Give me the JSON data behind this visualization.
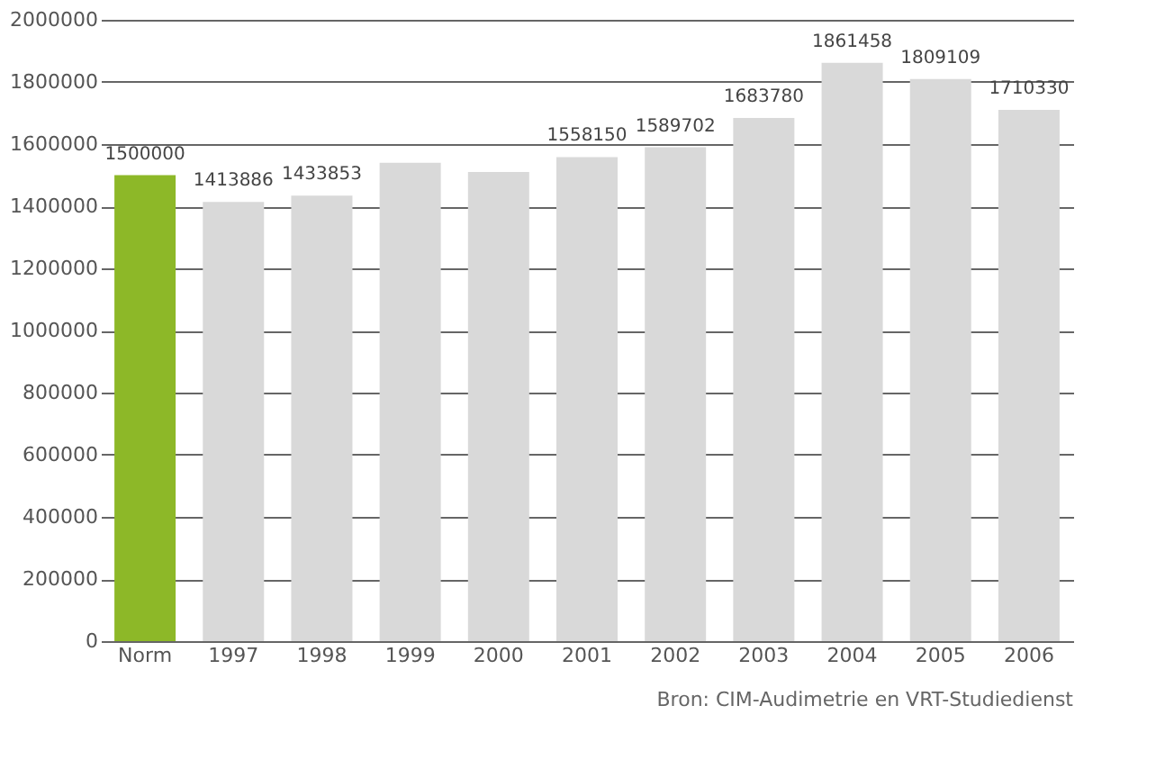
{
  "chart_data": {
    "type": "bar",
    "categories": [
      "Norm",
      "1997",
      "1998",
      "1999",
      "2000",
      "2001",
      "2002",
      "2003",
      "2004",
      "2005",
      "2006"
    ],
    "values": [
      1500000,
      1413886,
      1433853,
      1540000,
      1510000,
      1558150,
      1589702,
      1683780,
      1861458,
      1809109,
      1710330
    ],
    "colors": [
      "#8db828",
      "#d9d9d9",
      "#d9d9d9",
      "#d9d9d9",
      "#d9d9d9",
      "#d9d9d9",
      "#d9d9d9",
      "#d9d9d9",
      "#d9d9d9",
      "#d9d9d9",
      "#d9d9d9"
    ],
    "value_labels": [
      "1500000",
      "1413886",
      "1433853",
      null,
      null,
      "1558150",
      "1589702",
      "1683780",
      "1861458",
      "1809109",
      "1710330"
    ],
    "ylim": [
      0,
      2000000
    ],
    "yticks": [
      0,
      200000,
      400000,
      600000,
      800000,
      1000000,
      1200000,
      1400000,
      1600000,
      1800000,
      2000000
    ],
    "grid": "y",
    "annotations": [
      "Bron: CIM-Audimetrie en VRT-Studiedienst"
    ]
  }
}
